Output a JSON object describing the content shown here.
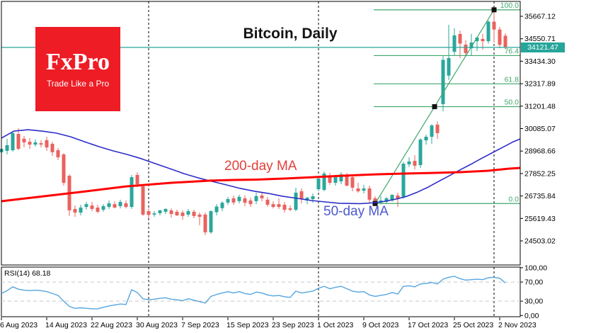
{
  "title": "Bitcoin, Daily",
  "logo": {
    "brand": "FxPro",
    "tagline": "Trade Like a Pro"
  },
  "overlays": {
    "ma200_label": "200-day MA",
    "ma50_label": "50-day MA",
    "rsi_label": "RSI(14) 68.18"
  },
  "current_price": {
    "value": "34121.47"
  },
  "colors": {
    "up": "#2aa79b",
    "down": "#e9625e",
    "ma200": "#ff0000",
    "ma50": "#2d2dc8",
    "fib": "#3fa66b",
    "price_line": "#26a69a",
    "rsi": "#55a5e0",
    "grid_month": "#000000",
    "rsi_levels": "#c9c9c9",
    "axis_text": "#000000",
    "logo_red": "#ee1c25"
  },
  "chart_data": {
    "type": "candlestick",
    "title": "Bitcoin, Daily",
    "timeframe": "Daily",
    "grid": "monthly-dashed-vertical",
    "legend_position": "none",
    "price_axis": {
      "side": "right",
      "ylim": [
        23305,
        36407
      ],
      "ticks": [
        35667.12,
        34550.71,
        33434.3,
        32317.89,
        31201.48,
        30085.07,
        28968.66,
        27852.25,
        26735.84,
        25619.43,
        24503.02
      ]
    },
    "date_axis": {
      "ticks": [
        {
          "label": "6 Aug 2023",
          "i": 0
        },
        {
          "label": "14 Aug 2023",
          "i": 8
        },
        {
          "label": "22 Aug 2023",
          "i": 16
        },
        {
          "label": "30 Aug 2023",
          "i": 24
        },
        {
          "label": "7 Sep 2023",
          "i": 32
        },
        {
          "label": "15 Sep 2023",
          "i": 40
        },
        {
          "label": "23 Sep 2023",
          "i": 48
        },
        {
          "label": "1 Oct 2023",
          "i": 56
        },
        {
          "label": "9 Oct 2023",
          "i": 64
        },
        {
          "label": "17 Oct 2023",
          "i": 72
        },
        {
          "label": "25 Oct 2023",
          "i": 80
        },
        {
          "label": "2 Nov 2023",
          "i": 88
        }
      ]
    },
    "month_gridlines_i": [
      26,
      56,
      87
    ],
    "current_price_line": 34121.47,
    "candles": [
      [
        28910,
        29220,
        28800,
        29080
      ],
      [
        28980,
        29580,
        28800,
        29260
      ],
      [
        29010,
        29960,
        28940,
        29860
      ],
      [
        29820,
        30100,
        29010,
        29080
      ],
      [
        29580,
        29720,
        29150,
        29400
      ],
      [
        29430,
        29610,
        29080,
        29290
      ],
      [
        29290,
        29540,
        29190,
        29400
      ],
      [
        29360,
        29510,
        29150,
        29290
      ],
      [
        29510,
        29680,
        28980,
        29150
      ],
      [
        29330,
        29430,
        28730,
        28910
      ],
      [
        29010,
        29120,
        28520,
        28660
      ],
      [
        28800,
        28870,
        27250,
        27390
      ],
      [
        27740,
        27810,
        25740,
        26020
      ],
      [
        26090,
        26260,
        25700,
        25910
      ],
      [
        25910,
        26300,
        25770,
        26160
      ],
      [
        26190,
        26440,
        26060,
        26330
      ],
      [
        26260,
        26440,
        25980,
        26090
      ],
      [
        26160,
        26300,
        25880,
        25950
      ],
      [
        26050,
        26330,
        25950,
        26230
      ],
      [
        26190,
        26510,
        26090,
        26370
      ],
      [
        26330,
        26470,
        26120,
        26160
      ],
      [
        26230,
        26550,
        26120,
        26440
      ],
      [
        26370,
        26510,
        26120,
        26190
      ],
      [
        26190,
        27780,
        26090,
        27670
      ],
      [
        27780,
        27920,
        27180,
        27320
      ],
      [
        27210,
        27320,
        25740,
        25810
      ],
      [
        25980,
        26120,
        25630,
        25790
      ],
      [
        25810,
        25980,
        25700,
        25870
      ],
      [
        25880,
        26050,
        25770,
        26020
      ],
      [
        25950,
        26120,
        25840,
        26090
      ],
      [
        26020,
        26120,
        25660,
        25840
      ],
      [
        25950,
        26050,
        25740,
        25770
      ],
      [
        25910,
        26020,
        25560,
        25740
      ],
      [
        25810,
        26090,
        25700,
        25980
      ],
      [
        25950,
        26050,
        25630,
        25740
      ],
      [
        25810,
        25910,
        25280,
        25700
      ],
      [
        25810,
        25910,
        24790,
        24930
      ],
      [
        24930,
        26020,
        24860,
        25980
      ],
      [
        25930,
        26330,
        25770,
        26210
      ],
      [
        26130,
        26470,
        25980,
        26400
      ],
      [
        26410,
        26690,
        26300,
        26580
      ],
      [
        26620,
        26760,
        26300,
        26410
      ],
      [
        26480,
        26800,
        26370,
        26690
      ],
      [
        26620,
        26760,
        26230,
        26400
      ],
      [
        26510,
        26650,
        26190,
        26330
      ],
      [
        26480,
        26900,
        26330,
        26730
      ],
      [
        26760,
        26900,
        26470,
        26620
      ],
      [
        26550,
        26690,
        26190,
        26300
      ],
      [
        26330,
        26470,
        26120,
        26190
      ],
      [
        26330,
        26620,
        26090,
        26190
      ],
      [
        26300,
        26440,
        25910,
        26050
      ],
      [
        26120,
        26260,
        25980,
        26050
      ],
      [
        26050,
        27150,
        25980,
        26900
      ],
      [
        26970,
        27110,
        26370,
        26580
      ],
      [
        26510,
        26690,
        26330,
        26650
      ],
      [
        26580,
        26860,
        26400,
        26720
      ],
      [
        27070,
        27740,
        26970,
        27600
      ],
      [
        27040,
        27950,
        26970,
        27850
      ],
      [
        27740,
        27880,
        27290,
        27390
      ],
      [
        27390,
        27740,
        27250,
        27670
      ],
      [
        27460,
        27920,
        27320,
        27810
      ],
      [
        27740,
        27880,
        27220,
        27250
      ],
      [
        27670,
        27810,
        26970,
        27150
      ],
      [
        27110,
        27390,
        26900,
        26970
      ],
      [
        27000,
        27290,
        26860,
        27110
      ],
      [
        27110,
        27250,
        26370,
        26550
      ],
      [
        26620,
        26720,
        26300,
        26400
      ],
      [
        26400,
        26720,
        26330,
        26510
      ],
      [
        26440,
        26690,
        26370,
        26620
      ],
      [
        26510,
        26830,
        26440,
        26790
      ],
      [
        26760,
        26900,
        26190,
        26590
      ],
      [
        26700,
        28430,
        26600,
        28340
      ],
      [
        28310,
        28660,
        28170,
        28450
      ],
      [
        28480,
        28760,
        28060,
        28240
      ],
      [
        28270,
        29610,
        28130,
        29540
      ],
      [
        29500,
        29780,
        29290,
        29680
      ],
      [
        29680,
        30310,
        29330,
        30240
      ],
      [
        30280,
        30450,
        29570,
        29860
      ],
      [
        31300,
        33700,
        30950,
        33500
      ],
      [
        32720,
        35250,
        32500,
        33590
      ],
      [
        33900,
        35070,
        33730,
        34720
      ],
      [
        34790,
        34960,
        33590,
        34310
      ],
      [
        34260,
        34470,
        33660,
        33840
      ],
      [
        34080,
        34790,
        33730,
        34360
      ],
      [
        34430,
        34645,
        33940,
        34610
      ],
      [
        34540,
        34790,
        34010,
        34430
      ],
      [
        34430,
        35450,
        34310,
        35400
      ],
      [
        35400,
        35990,
        34360,
        35010
      ],
      [
        35010,
        35140,
        34080,
        34250
      ],
      [
        34700,
        34820,
        34060,
        34121.47
      ]
    ],
    "ma200": {
      "name": "200-day MA",
      "points": [
        [
          0,
          26475
        ],
        [
          7.5,
          26722
        ],
        [
          15,
          26968
        ],
        [
          22,
          27210
        ],
        [
          30,
          27390
        ],
        [
          37,
          27500
        ],
        [
          41,
          27530
        ],
        [
          45,
          27550
        ],
        [
          50,
          27600
        ],
        [
          55,
          27670
        ],
        [
          60,
          27740
        ],
        [
          66,
          27810
        ],
        [
          71,
          27850
        ],
        [
          76,
          27880
        ],
        [
          81,
          27920
        ],
        [
          86,
          27990
        ],
        [
          89.5,
          28090
        ],
        [
          91.6,
          28130
        ]
      ]
    },
    "ma50": {
      "name": "50-day MA",
      "points": [
        [
          0,
          29610
        ],
        [
          2.2,
          29960
        ],
        [
          4.7,
          30030
        ],
        [
          7.2,
          29960
        ],
        [
          9.7,
          29860
        ],
        [
          12.2,
          29680
        ],
        [
          14.7,
          29430
        ],
        [
          17.2,
          29190
        ],
        [
          19.7,
          28980
        ],
        [
          22.2,
          28800
        ],
        [
          24.7,
          28590
        ],
        [
          27.2,
          28340
        ],
        [
          29.7,
          28100
        ],
        [
          32.2,
          27850
        ],
        [
          34.7,
          27640
        ],
        [
          37.2,
          27460
        ],
        [
          39.7,
          27290
        ],
        [
          42.2,
          27110
        ],
        [
          44.7,
          26970
        ],
        [
          47.2,
          26860
        ],
        [
          49.7,
          26720
        ],
        [
          52.2,
          26620
        ],
        [
          54.7,
          26510
        ],
        [
          57.2,
          26440
        ],
        [
          59.7,
          26370
        ],
        [
          63.4,
          26355
        ],
        [
          66,
          26400
        ],
        [
          67.8,
          26475
        ],
        [
          69.7,
          26580
        ],
        [
          71.6,
          26720
        ],
        [
          73.5,
          26930
        ],
        [
          75.4,
          27180
        ],
        [
          77.2,
          27460
        ],
        [
          79.1,
          27740
        ],
        [
          81,
          28030
        ],
        [
          82.9,
          28310
        ],
        [
          84.7,
          28590
        ],
        [
          86.6,
          28870
        ],
        [
          88.5,
          29150
        ],
        [
          90.4,
          29430
        ],
        [
          91.6,
          29570
        ]
      ]
    },
    "fibonacci": {
      "levels": [
        {
          "label": "100.0",
          "price": 35990
        },
        {
          "label": "76.4",
          "price": 33715
        },
        {
          "label": "61.8",
          "price": 32310
        },
        {
          "label": "50.0",
          "price": 31175
        },
        {
          "label": "0.0",
          "price": 26360
        }
      ],
      "trendline": {
        "from": {
          "i": 66,
          "price": 26360
        },
        "to": {
          "i": 87,
          "price": 35990
        }
      }
    },
    "rsi": {
      "label": "RSI(14) 68.18",
      "period": 14,
      "value": 68.18,
      "overbought": 70,
      "oversold": 30,
      "ticks": [
        {
          "label": "100,00",
          "value": 100
        },
        {
          "label": "70,00",
          "value": 70
        },
        {
          "label": "30,00",
          "value": 30
        },
        {
          "label": "0,00",
          "value": 0
        }
      ],
      "values": [
        46,
        52,
        60,
        55,
        53,
        52,
        53,
        52,
        50,
        46,
        42,
        30,
        19,
        15,
        16,
        15,
        14,
        14,
        17,
        20,
        22,
        24,
        23,
        54,
        48,
        35,
        33,
        34,
        36,
        37,
        34,
        33,
        31,
        35,
        32,
        29,
        26,
        40,
        44,
        47,
        50,
        47,
        50,
        46,
        44,
        49,
        47,
        43,
        41,
        42,
        39,
        38,
        51,
        47,
        49,
        51,
        57,
        61,
        56,
        59,
        61,
        56,
        51,
        49,
        50,
        43,
        40,
        42,
        44,
        48,
        45,
        61,
        62,
        60,
        66,
        67,
        69,
        66,
        76,
        80,
        82,
        77,
        74,
        75,
        76,
        75,
        79,
        80,
        78,
        68.18
      ]
    }
  }
}
